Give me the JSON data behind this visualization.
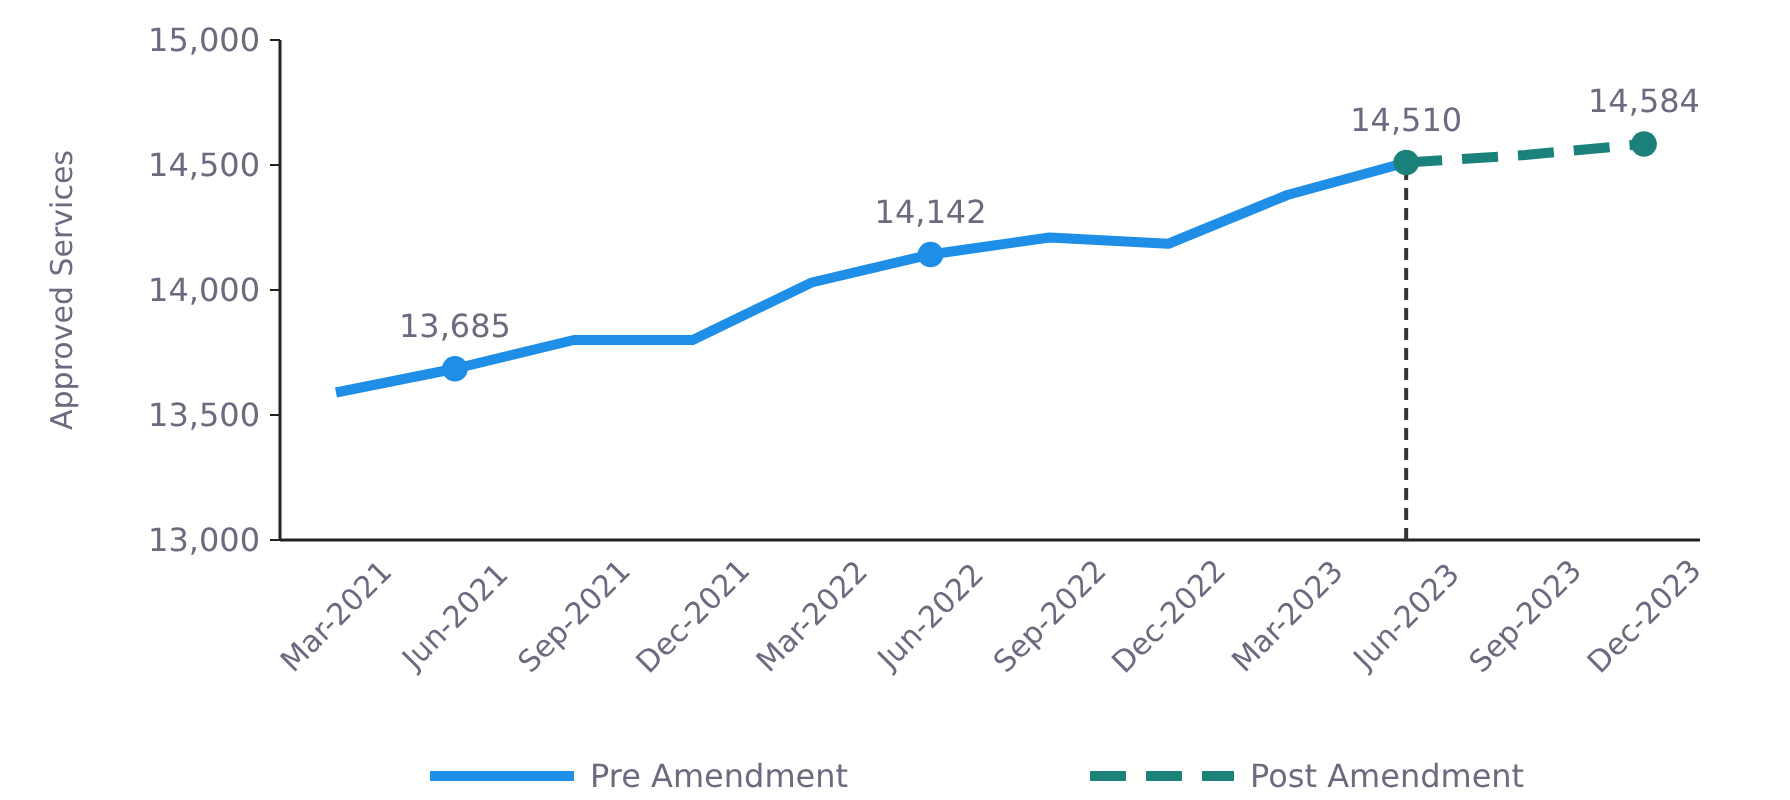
{
  "chart_data": {
    "type": "line",
    "ylabel": "Approved Services",
    "categories": [
      "Mar-2021",
      "Jun-2021",
      "Sep-2021",
      "Dec-2021",
      "Mar-2022",
      "Jun-2022",
      "Sep-2022",
      "Dec-2022",
      "Mar-2023",
      "Jun-2023",
      "Sep-2023",
      "Dec-2023"
    ],
    "series": [
      {
        "name": "Pre Amendment",
        "color": "#1e8ee6",
        "line_style": "solid",
        "values": [
          13590,
          13685,
          13800,
          13800,
          14030,
          14142,
          14210,
          14185,
          14380,
          14510,
          null,
          null
        ]
      },
      {
        "name": "Post Amendment",
        "color": "#1b817b",
        "line_style": "dashed",
        "values": [
          null,
          null,
          null,
          null,
          null,
          null,
          null,
          null,
          null,
          14510,
          14540,
          14584
        ]
      },
      {
        "type": "scatter",
        "color": "#1e8ee6",
        "marker": "circle",
        "x": [
          "Jun-2021",
          "Jun-2022"
        ],
        "values": [
          13685,
          14142
        ],
        "value_labels": [
          "13,685",
          "14,142"
        ]
      },
      {
        "type": "scatter",
        "color": "#1b817b",
        "marker": "circle",
        "x": [
          "Jun-2023",
          "Dec-2023"
        ],
        "values": [
          14510,
          14584
        ],
        "value_labels": [
          "14,510",
          "14,584"
        ]
      }
    ],
    "ylim": [
      13000,
      15000
    ],
    "yticks": [
      {
        "value": 13000,
        "label": "13,000"
      },
      {
        "value": 13500,
        "label": "13,500"
      },
      {
        "value": 14000,
        "label": "14,000"
      },
      {
        "value": 14500,
        "label": "14,500"
      },
      {
        "value": 15000,
        "label": "15,000"
      }
    ],
    "ref_lines": [
      {
        "axis": "x",
        "value": "Jun-2023",
        "color": "#333333",
        "line_style": "dashed"
      }
    ],
    "legend": "bottom",
    "grid": false
  }
}
